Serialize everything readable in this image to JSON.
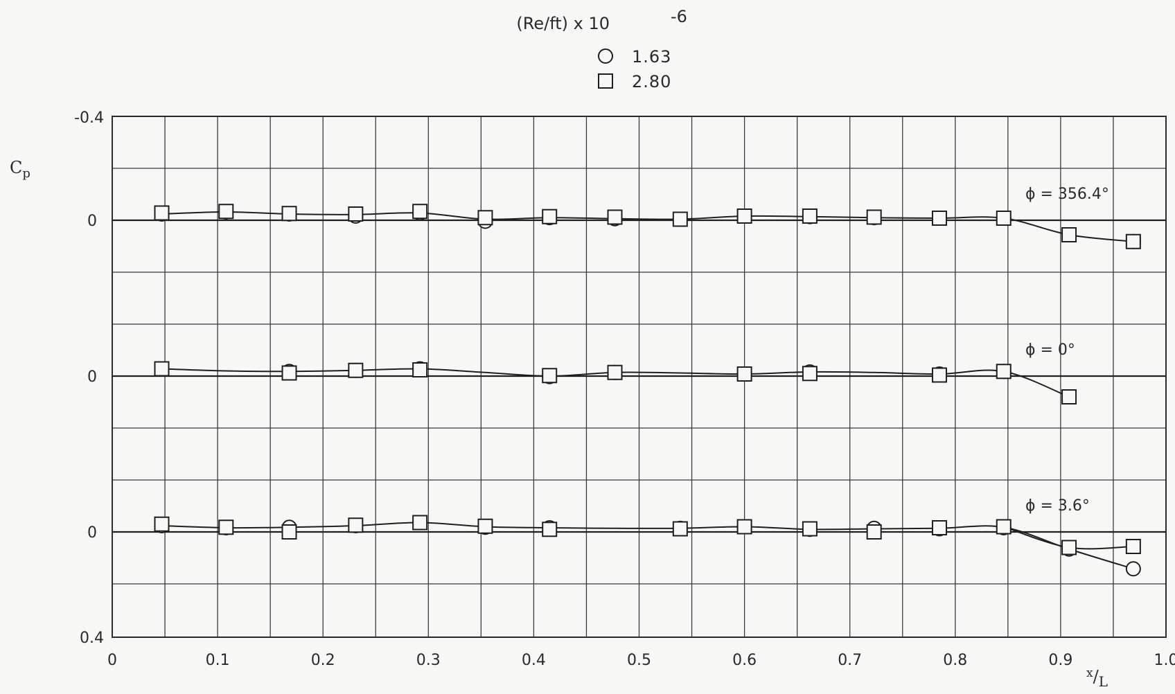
{
  "chart_data": {
    "type": "scatter",
    "title": "",
    "xlabel": "x/L",
    "ylabel": "Cp",
    "xlim": [
      0,
      1.0
    ],
    "x_ticks": [
      "0",
      "0.1",
      "0.2",
      "0.3",
      "0.4",
      "0.5",
      "0.6",
      "0.7",
      "0.8",
      "0.9",
      "1.0"
    ],
    "y_top_label": "-0.4",
    "y_bottom_label": "0.4",
    "zero_label": "0",
    "grid": true,
    "legend": {
      "title_base": "(Re/ft) x 10",
      "title_exp": "-6",
      "position": "top-center",
      "entries": [
        {
          "marker": "circle",
          "label": "1.63"
        },
        {
          "marker": "square",
          "label": "2.80"
        }
      ]
    },
    "panels": [
      {
        "label": "ϕ = 356.4°",
        "cp_range": [
          -0.2,
          0.2
        ],
        "series": [
          {
            "name": "1.63",
            "marker": "circle",
            "x": [
              0.047,
              0.108,
              0.168,
              0.231,
              0.292,
              0.354,
              0.415,
              0.477,
              0.539,
              0.6,
              0.662,
              0.723,
              0.785,
              0.846,
              0.908,
              0.969
            ],
            "cp": [
              -0.012,
              -0.016,
              -0.012,
              -0.008,
              -0.014,
              0.002,
              -0.005,
              -0.003,
              -0.002,
              -0.008,
              -0.007,
              -0.005,
              -0.004,
              -0.004,
              0.028,
              0.041
            ]
          },
          {
            "name": "2.80",
            "marker": "square",
            "x": [
              0.047,
              0.108,
              0.168,
              0.231,
              0.292,
              0.354,
              0.415,
              0.477,
              0.539,
              0.6,
              0.662,
              0.723,
              0.785,
              0.846,
              0.908,
              0.969
            ],
            "cp": [
              -0.014,
              -0.017,
              -0.013,
              -0.012,
              -0.017,
              -0.005,
              -0.007,
              -0.006,
              -0.002,
              -0.008,
              -0.008,
              -0.006,
              -0.004,
              -0.004,
              0.028,
              0.041
            ]
          }
        ],
        "curve": {
          "x": [
            0.047,
            0.108,
            0.168,
            0.231,
            0.292,
            0.354,
            0.415,
            0.477,
            0.539,
            0.6,
            0.662,
            0.723,
            0.785,
            0.846,
            0.908,
            0.969
          ],
          "cp": [
            -0.012,
            -0.016,
            -0.012,
            -0.011,
            -0.014,
            -0.002,
            -0.005,
            -0.003,
            -0.002,
            -0.008,
            -0.007,
            -0.005,
            -0.004,
            -0.004,
            0.028,
            0.041
          ]
        }
      },
      {
        "label": "ϕ = 0°",
        "cp_range": [
          -0.2,
          0.2
        ],
        "series": [
          {
            "name": "1.63",
            "marker": "circle",
            "x": [
              0.047,
              0.168,
              0.231,
              0.292,
              0.415,
              0.477,
              0.6,
              0.662,
              0.785,
              0.846
            ],
            "cp": [
              -0.014,
              -0.009,
              -0.011,
              -0.014,
              0.001,
              -0.007,
              -0.004,
              -0.008,
              -0.004,
              -0.009
            ]
          },
          {
            "name": "2.80",
            "marker": "square",
            "x": [
              0.047,
              0.168,
              0.231,
              0.292,
              0.415,
              0.477,
              0.6,
              0.662,
              0.785,
              0.846,
              0.908
            ],
            "cp": [
              -0.014,
              -0.006,
              -0.011,
              -0.012,
              -0.001,
              -0.007,
              -0.004,
              -0.005,
              -0.002,
              -0.009,
              0.04
            ]
          }
        ],
        "curve": {
          "x": [
            0.047,
            0.108,
            0.168,
            0.231,
            0.292,
            0.354,
            0.415,
            0.477,
            0.539,
            0.6,
            0.662,
            0.723,
            0.785,
            0.846,
            0.908
          ],
          "cp": [
            -0.014,
            -0.01,
            -0.009,
            -0.011,
            -0.014,
            -0.007,
            0.0,
            -0.007,
            -0.006,
            -0.004,
            -0.008,
            -0.007,
            -0.004,
            -0.009,
            0.04
          ]
        }
      },
      {
        "label": "ϕ = 3.6°",
        "cp_range": [
          -0.2,
          0.2
        ],
        "series": [
          {
            "name": "1.63",
            "marker": "circle",
            "x": [
              0.047,
              0.108,
              0.168,
              0.231,
              0.292,
              0.354,
              0.415,
              0.539,
              0.6,
              0.662,
              0.723,
              0.785,
              0.846,
              0.908,
              0.969
            ],
            "cp": [
              -0.012,
              -0.008,
              -0.009,
              -0.012,
              -0.018,
              -0.009,
              -0.008,
              -0.007,
              -0.01,
              -0.005,
              -0.007,
              -0.006,
              -0.008,
              0.033,
              0.071
            ]
          },
          {
            "name": "2.80",
            "marker": "square",
            "x": [
              0.047,
              0.108,
              0.168,
              0.231,
              0.292,
              0.354,
              0.415,
              0.539,
              0.6,
              0.662,
              0.723,
              0.785,
              0.846,
              0.908,
              0.969
            ],
            "cp": [
              -0.015,
              -0.009,
              0.0,
              -0.013,
              -0.018,
              -0.011,
              -0.005,
              -0.006,
              -0.01,
              -0.006,
              0.0,
              -0.008,
              -0.01,
              0.03,
              0.028
            ]
          }
        ],
        "curve": {
          "x": [
            0.047,
            0.108,
            0.168,
            0.231,
            0.292,
            0.354,
            0.415,
            0.477,
            0.539,
            0.6,
            0.662,
            0.723,
            0.785,
            0.846,
            0.908,
            0.969
          ],
          "cp": [
            -0.012,
            -0.008,
            -0.009,
            -0.012,
            -0.018,
            -0.01,
            -0.008,
            -0.007,
            -0.007,
            -0.01,
            -0.005,
            -0.006,
            -0.007,
            -0.009,
            0.033,
            0.071
          ]
        },
        "curve_alt": {
          "x": [
            0.846,
            0.908,
            0.969
          ],
          "cp": [
            -0.01,
            0.03,
            0.028
          ]
        }
      }
    ]
  }
}
